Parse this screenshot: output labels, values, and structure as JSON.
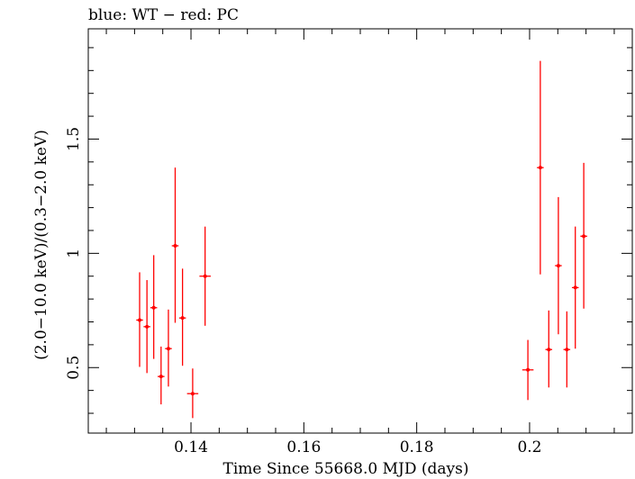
{
  "chart_data": {
    "type": "scatter",
    "title": "blue: WT − red: PC",
    "xlabel": "Time Since 55668.0 MJD (days)",
    "ylabel": "(2.0−10.0 keV)/(0.3−2.0 keV)",
    "xlim": [
      0.1218,
      0.2182
    ],
    "ylim": [
      0.2134,
      1.9825
    ],
    "x_ticks": [
      {
        "value": 0.14,
        "label": "0.14"
      },
      {
        "value": 0.16,
        "label": "0.16"
      },
      {
        "value": 0.18,
        "label": "0.18"
      },
      {
        "value": 0.2,
        "label": "0.2"
      }
    ],
    "y_ticks": [
      {
        "value": 0.5,
        "label": "0.5"
      },
      {
        "value": 1.0,
        "label": "1"
      },
      {
        "value": 1.5,
        "label": "1.5"
      }
    ],
    "grid": false,
    "series": [
      {
        "color": "#ff0000",
        "points": [
          {
            "x": 0.1309,
            "y": 0.708,
            "xerr": 0.0006,
            "ylo": 0.503,
            "yhi": 0.917
          },
          {
            "x": 0.1322,
            "y": 0.679,
            "xerr": 0.0006,
            "ylo": 0.476,
            "yhi": 0.883
          },
          {
            "x": 0.1334,
            "y": 0.762,
            "xerr": 0.0006,
            "ylo": 0.538,
            "yhi": 0.992
          },
          {
            "x": 0.1347,
            "y": 0.461,
            "xerr": 0.0006,
            "ylo": 0.339,
            "yhi": 0.592
          },
          {
            "x": 0.136,
            "y": 0.583,
            "xerr": 0.0006,
            "ylo": 0.417,
            "yhi": 0.754
          },
          {
            "x": 0.1372,
            "y": 1.033,
            "xerr": 0.0006,
            "ylo": 0.696,
            "yhi": 1.375
          },
          {
            "x": 0.1385,
            "y": 0.717,
            "xerr": 0.0006,
            "ylo": 0.508,
            "yhi": 0.933
          },
          {
            "x": 0.1403,
            "y": 0.386,
            "xerr": 0.001,
            "ylo": 0.279,
            "yhi": 0.496
          },
          {
            "x": 0.1425,
            "y": 0.9,
            "xerr": 0.001,
            "ylo": 0.683,
            "yhi": 1.117
          },
          {
            "x": 0.1997,
            "y": 0.49,
            "xerr": 0.001,
            "ylo": 0.358,
            "yhi": 0.621
          },
          {
            "x": 0.2019,
            "y": 1.375,
            "xerr": 0.0006,
            "ylo": 0.908,
            "yhi": 1.842
          },
          {
            "x": 0.2034,
            "y": 0.579,
            "xerr": 0.0006,
            "ylo": 0.413,
            "yhi": 0.75
          },
          {
            "x": 0.2051,
            "y": 0.946,
            "xerr": 0.0006,
            "ylo": 0.646,
            "yhi": 1.246
          },
          {
            "x": 0.2066,
            "y": 0.579,
            "xerr": 0.0006,
            "ylo": 0.413,
            "yhi": 0.746
          },
          {
            "x": 0.2081,
            "y": 0.85,
            "xerr": 0.0006,
            "ylo": 0.583,
            "yhi": 1.117
          },
          {
            "x": 0.2096,
            "y": 1.075,
            "xerr": 0.0006,
            "ylo": 0.758,
            "yhi": 1.396
          }
        ]
      }
    ]
  }
}
